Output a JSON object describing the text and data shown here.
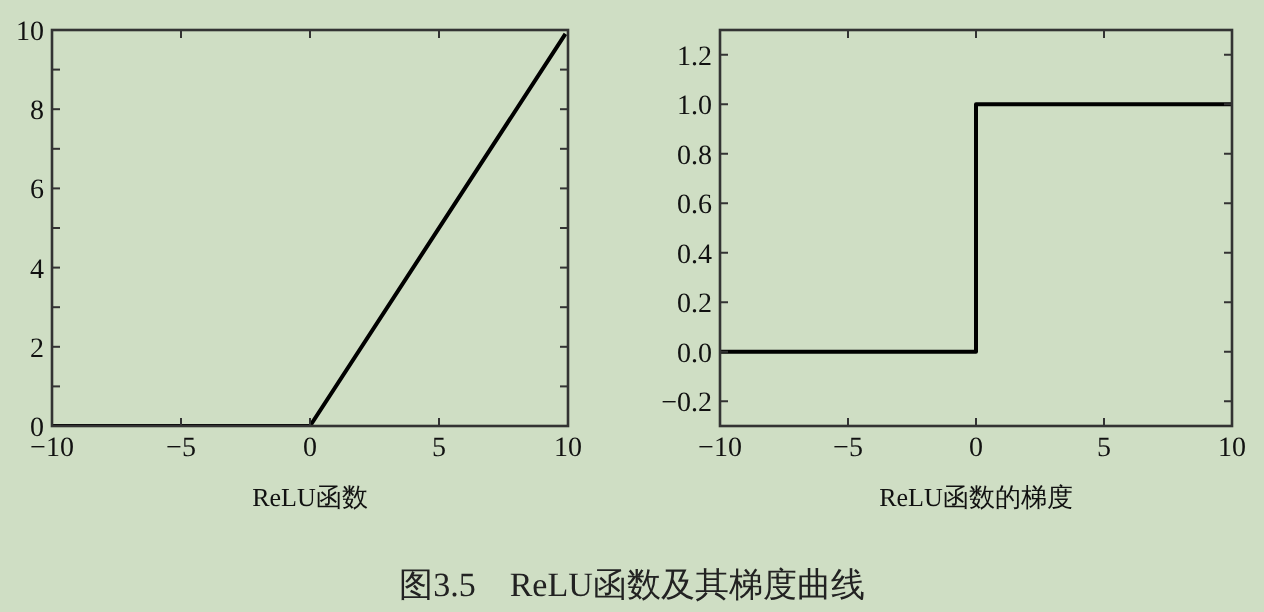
{
  "chart_data": [
    {
      "type": "line",
      "xlabel": "ReLU函数",
      "xlim": [
        -10,
        10
      ],
      "ylim": [
        0,
        10
      ],
      "xticks": [
        -10,
        -5,
        0,
        5,
        10
      ],
      "yticks": [
        0,
        {
          "value": 1,
          "label": null
        },
        2,
        {
          "value": 3,
          "label": null
        },
        4,
        {
          "value": 5,
          "label": null
        },
        6,
        {
          "value": 7,
          "label": null
        },
        8,
        {
          "value": 9,
          "label": null
        },
        10
      ],
      "grid": false,
      "series": [
        {
          "color": "#000000",
          "x": [
            -10,
            0,
            9.9
          ],
          "values": [
            0,
            0,
            9.9
          ]
        }
      ]
    },
    {
      "type": "step",
      "xlabel": "ReLU函数的梯度",
      "xlim": [
        -10,
        10
      ],
      "ylim": [
        -0.3,
        1.3
      ],
      "xticks": [
        -10,
        -5,
        0,
        5,
        10
      ],
      "yticks": [
        {
          "value": -0.2,
          "label": "−0.2"
        },
        {
          "value": 0,
          "label": "0.0"
        },
        {
          "value": 0.2,
          "label": "0.2"
        },
        {
          "value": 0.4,
          "label": "0.4"
        },
        {
          "value": 0.6,
          "label": "0.6"
        },
        {
          "value": 0.8,
          "label": "0.8"
        },
        {
          "value": 1,
          "label": "1.0"
        },
        {
          "value": 1.2,
          "label": "1.2"
        }
      ],
      "grid": false,
      "annotations": [
        "图3.5　ReLU函数及其梯度曲线"
      ],
      "series": [
        {
          "color": "#000000",
          "x": [
            -10,
            0,
            10
          ],
          "values": [
            0,
            1,
            1
          ]
        }
      ]
    }
  ]
}
